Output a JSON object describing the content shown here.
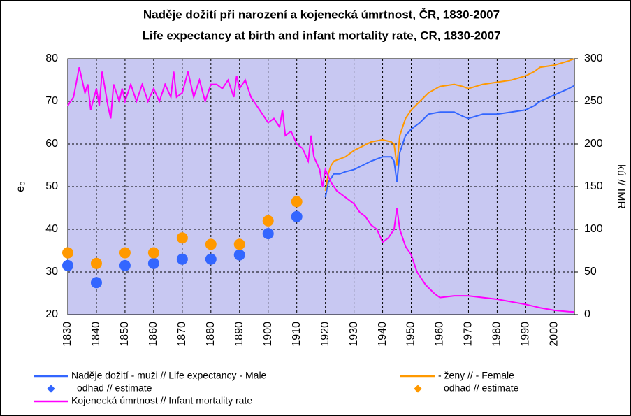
{
  "chart_data": {
    "type": "line",
    "title": "Naděje dožití při narození a kojenecká úmrtnost, ČR, 1830-2007",
    "subtitle": "Life expectancy at birth and infant mortality rate, CR, 1830-2007",
    "y_label": "e₀",
    "y2_label": "kú // IMR",
    "xlim": [
      1830,
      2007
    ],
    "xticks": [
      1830,
      1840,
      1850,
      1860,
      1870,
      1880,
      1890,
      1900,
      1910,
      1920,
      1930,
      1940,
      1950,
      1960,
      1970,
      1980,
      1990,
      2000
    ],
    "ylim": [
      20,
      80
    ],
    "yticks": [
      20,
      30,
      40,
      50,
      60,
      70,
      80
    ],
    "y2lim": [
      0,
      300
    ],
    "y2ticks": [
      0,
      50,
      100,
      150,
      200,
      250,
      300
    ],
    "grid": true,
    "series": [
      {
        "name": "Naděje dožití - muži // Life expectancy - Male",
        "color": "#3366ff",
        "mark": "line",
        "x": [
          1920,
          1921,
          1922,
          1923,
          1925,
          1927,
          1930,
          1933,
          1936,
          1940,
          1943,
          1944,
          1945,
          1946,
          1947,
          1948,
          1950,
          1953,
          1956,
          1960,
          1965,
          1968,
          1970,
          1975,
          1980,
          1985,
          1990,
          1993,
          1995,
          2000,
          2005,
          2007
        ],
        "values": [
          47.5,
          51,
          52,
          53,
          53,
          53.5,
          54,
          55,
          56,
          57,
          57,
          56,
          51,
          58,
          60,
          62,
          63.5,
          65,
          67,
          67.5,
          67.5,
          66.5,
          66,
          67,
          67,
          67.5,
          68,
          69,
          70,
          71.5,
          73,
          73.7
        ]
      },
      {
        "name": "- ženy //  - Female",
        "color": "#ff9900",
        "mark": "line",
        "x": [
          1920,
          1921,
          1922,
          1923,
          1925,
          1927,
          1930,
          1933,
          1936,
          1940,
          1943,
          1944,
          1945,
          1946,
          1947,
          1948,
          1950,
          1953,
          1956,
          1960,
          1965,
          1968,
          1970,
          1975,
          1980,
          1985,
          1990,
          1993,
          1995,
          2000,
          2005,
          2007
        ],
        "values": [
          49,
          53,
          55,
          56,
          56.5,
          57,
          58.5,
          59.5,
          60.5,
          61,
          60.5,
          60,
          55,
          62,
          64,
          66,
          68,
          70,
          72,
          73.5,
          74,
          73.5,
          73,
          74,
          74.5,
          75,
          76,
          77,
          78,
          78.5,
          79.5,
          80
        ]
      },
      {
        "name": "odhad // estimate",
        "color": "#3366ff",
        "mark": "dot",
        "x": [
          1830,
          1840,
          1850,
          1860,
          1870,
          1880,
          1890,
          1900,
          1910
        ],
        "values": [
          31.5,
          27.5,
          31.5,
          32,
          33,
          33,
          34,
          39,
          43
        ]
      },
      {
        "name": "odhad // estimate",
        "color": "#ff9900",
        "mark": "dot",
        "x": [
          1830,
          1840,
          1850,
          1860,
          1870,
          1880,
          1890,
          1900,
          1910
        ],
        "values": [
          34.5,
          32,
          34.5,
          34.5,
          38,
          36.5,
          36.5,
          42,
          46.5
        ]
      },
      {
        "name": "Kojenecká úmrtnost // Infant mortality rate",
        "color": "#ff00ff",
        "mark": "line",
        "axis": "y2",
        "x": [
          1830,
          1832,
          1834,
          1836,
          1837,
          1838,
          1840,
          1841,
          1842,
          1844,
          1845,
          1846,
          1848,
          1849,
          1850,
          1852,
          1854,
          1856,
          1858,
          1860,
          1862,
          1864,
          1866,
          1867,
          1868,
          1870,
          1872,
          1874,
          1876,
          1878,
          1880,
          1882,
          1884,
          1886,
          1888,
          1889,
          1890,
          1892,
          1894,
          1896,
          1898,
          1900,
          1902,
          1904,
          1905,
          1906,
          1908,
          1910,
          1912,
          1914,
          1915,
          1916,
          1918,
          1919,
          1920,
          1922,
          1924,
          1926,
          1928,
          1930,
          1932,
          1934,
          1936,
          1938,
          1940,
          1942,
          1944,
          1945,
          1946,
          1948,
          1950,
          1952,
          1955,
          1958,
          1960,
          1965,
          1968,
          1970,
          1975,
          1980,
          1985,
          1990,
          1995,
          2000,
          2005,
          2007
        ],
        "values": [
          245,
          255,
          290,
          260,
          270,
          240,
          265,
          245,
          285,
          245,
          230,
          270,
          250,
          265,
          250,
          270,
          250,
          270,
          250,
          265,
          250,
          270,
          255,
          285,
          255,
          260,
          285,
          255,
          275,
          250,
          270,
          270,
          265,
          275,
          255,
          280,
          265,
          275,
          255,
          245,
          235,
          225,
          230,
          220,
          240,
          210,
          215,
          200,
          195,
          180,
          210,
          185,
          170,
          150,
          170,
          155,
          145,
          140,
          135,
          130,
          120,
          115,
          105,
          100,
          85,
          90,
          100,
          125,
          100,
          80,
          70,
          50,
          35,
          25,
          20,
          22,
          22,
          22,
          20,
          18,
          15,
          12,
          8,
          5,
          3.5,
          3.2
        ]
      }
    ]
  }
}
